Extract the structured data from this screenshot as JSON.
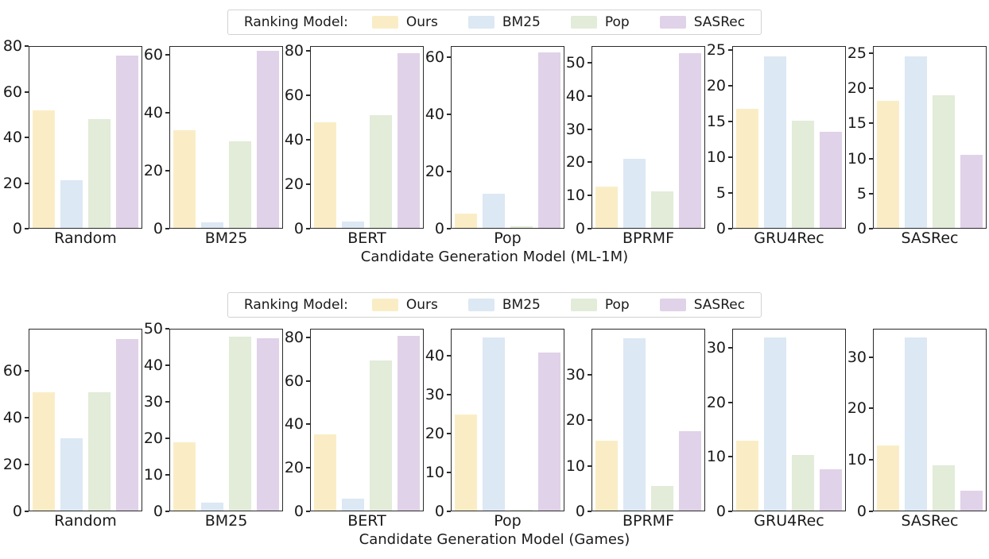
{
  "figure": {
    "background": "#ffffff",
    "axis_color": "#2a2a2a",
    "text_color": "#1a1a1a"
  },
  "legend": {
    "title": "Ranking Model:",
    "entries": [
      {
        "label": "Ours",
        "color": "#FAEDC6"
      },
      {
        "label": "BM25",
        "color": "#DCE8F4"
      },
      {
        "label": "Pop",
        "color": "#E2ECD9"
      },
      {
        "label": "SASRec",
        "color": "#E0D2E8"
      }
    ]
  },
  "chart_data": [
    {
      "type": "bar",
      "xlabel": "Candidate Generation Model (ML-1M)",
      "legend_position": "top center",
      "grid": false,
      "series_names": [
        "Ours",
        "BM25",
        "Pop",
        "SASRec"
      ],
      "categories": [
        "Random",
        "BM25",
        "BERT",
        "Pop",
        "BPRMF",
        "GRU4Rec",
        "SASRec"
      ],
      "subplots": [
        {
          "category": "Random",
          "ylim": [
            0,
            80
          ],
          "yticks": [
            0,
            20,
            40,
            60,
            80
          ],
          "values": [
            52,
            21,
            48,
            76
          ]
        },
        {
          "category": "BM25",
          "ylim": [
            0,
            63
          ],
          "yticks": [
            0,
            20,
            40,
            60
          ],
          "values": [
            34,
            2,
            30,
            61.5
          ]
        },
        {
          "category": "BERT",
          "ylim": [
            0,
            82
          ],
          "yticks": [
            0,
            20,
            40,
            60,
            80
          ],
          "values": [
            48,
            3,
            51,
            79
          ]
        },
        {
          "category": "Pop",
          "ylim": [
            0,
            64
          ],
          "yticks": [
            0,
            20,
            40,
            60
          ],
          "values": [
            5,
            12,
            0.5,
            62
          ]
        },
        {
          "category": "BPRMF",
          "ylim": [
            0,
            55
          ],
          "yticks": [
            0,
            10,
            20,
            30,
            40,
            50
          ],
          "values": [
            12.5,
            21,
            11,
            53
          ]
        },
        {
          "category": "GRU4Rec",
          "ylim": [
            0,
            25.5
          ],
          "yticks": [
            0,
            5,
            10,
            15,
            20,
            25
          ],
          "values": [
            16.8,
            24.2,
            15.1,
            13.5
          ]
        },
        {
          "category": "SASRec",
          "ylim": [
            0,
            26
          ],
          "yticks": [
            0,
            5,
            10,
            15,
            20,
            25
          ],
          "values": [
            18.2,
            24.6,
            19,
            10.5
          ]
        }
      ]
    },
    {
      "type": "bar",
      "xlabel": "Candidate Generation Model (Games)",
      "legend_position": "top center",
      "grid": false,
      "series_names": [
        "Ours",
        "BM25",
        "Pop",
        "SASRec"
      ],
      "categories": [
        "Random",
        "BM25",
        "BERT",
        "Pop",
        "BPRMF",
        "GRU4Rec",
        "SASRec"
      ],
      "subplots": [
        {
          "category": "Random",
          "ylim": [
            0,
            78
          ],
          "yticks": [
            0,
            20,
            40,
            60
          ],
          "values": [
            51,
            31,
            51,
            74
          ]
        },
        {
          "category": "BM25",
          "ylim": [
            0,
            50
          ],
          "yticks": [
            0,
            10,
            20,
            30,
            40,
            50
          ],
          "values": [
            18.8,
            2.3,
            48,
            47.5
          ]
        },
        {
          "category": "BERT",
          "ylim": [
            0,
            84
          ],
          "yticks": [
            0,
            20,
            40,
            60,
            80
          ],
          "values": [
            35.5,
            5.5,
            69.5,
            81
          ]
        },
        {
          "category": "Pop",
          "ylim": [
            0,
            47
          ],
          "yticks": [
            0,
            10,
            20,
            30,
            40
          ],
          "values": [
            25,
            45,
            0.3,
            41
          ]
        },
        {
          "category": "BPRMF",
          "ylim": [
            0,
            40
          ],
          "yticks": [
            0,
            10,
            20,
            30
          ],
          "values": [
            15.5,
            38,
            5.5,
            17.5
          ]
        },
        {
          "category": "GRU4Rec",
          "ylim": [
            0,
            33.5
          ],
          "yticks": [
            0,
            10,
            20,
            30
          ],
          "values": [
            13,
            32,
            10.3,
            7.6
          ]
        },
        {
          "category": "SASRec",
          "ylim": [
            0,
            35.5
          ],
          "yticks": [
            0,
            10,
            20,
            30
          ],
          "values": [
            12.7,
            34,
            8.8,
            3.9
          ]
        }
      ]
    }
  ]
}
